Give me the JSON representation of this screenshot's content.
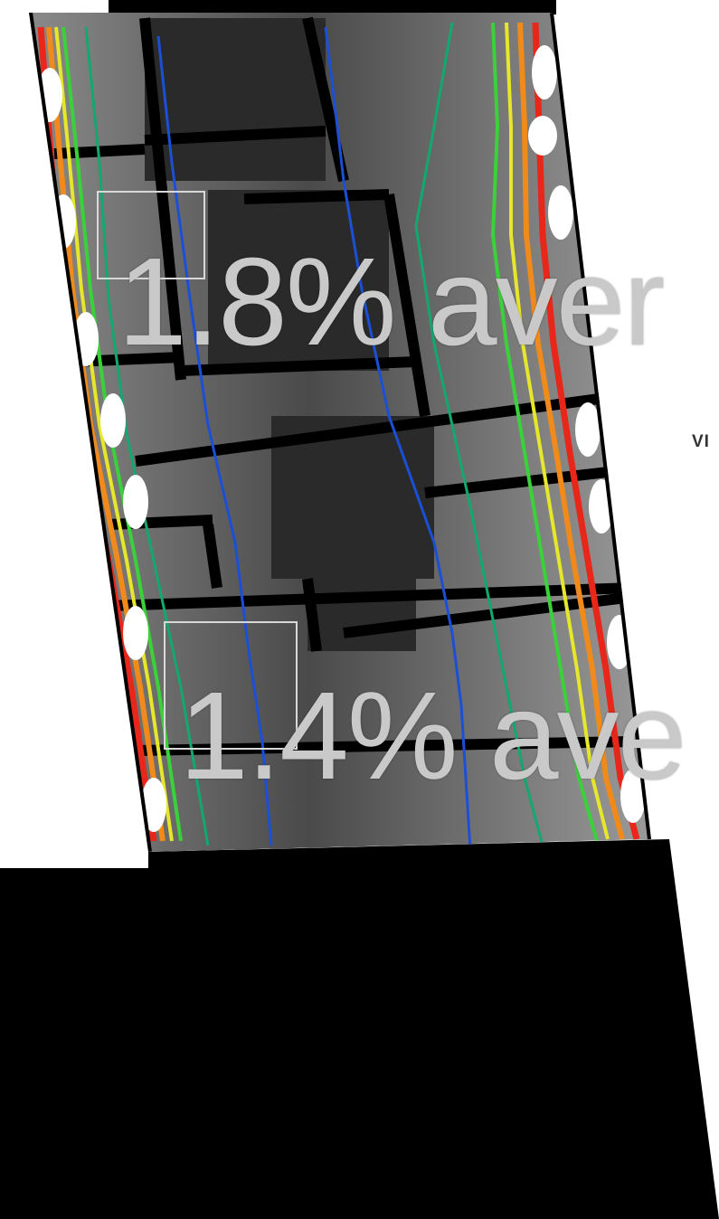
{
  "overlay": {
    "top_zone_value": "1.8% aver",
    "bottom_zone_value": "1.4% ave",
    "side_caption": "VI"
  },
  "legend_colors": {
    "contour_blue": "#1a4fd6",
    "contour_teal": "#12a870",
    "contour_green": "#3ad13a",
    "contour_yellow": "#e6e62a",
    "contour_orange": "#f08a1a",
    "contour_red": "#e8261a",
    "floor_gray": "#6e6e6e",
    "wall_black": "#000000",
    "label_gray": "#c9c9c9"
  }
}
